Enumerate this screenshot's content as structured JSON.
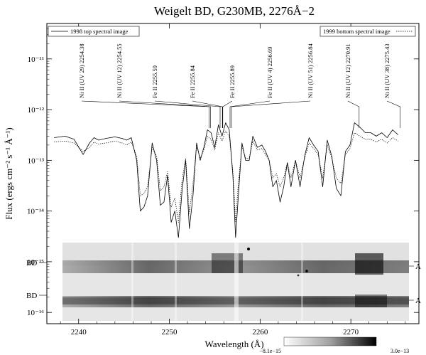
{
  "chart_data": {
    "type": "line",
    "title": "Weigelt BD, G230MB, 2276Å−2",
    "xlabel": "Wavelength (Å)",
    "ylabel": "Flux (ergs cm⁻² s⁻¹ Å⁻¹)",
    "xlim": [
      2236.5,
      2277.5
    ],
    "ylim": [
      6e-17,
      5e-11
    ],
    "yscale": "log",
    "grid": false,
    "x_ticks": [
      2240,
      2250,
      2260,
      2270
    ],
    "x_tick_labels": [
      "2240",
      "2250",
      "2260",
      "2270"
    ],
    "y_ticks": [
      1e-16,
      1e-15,
      1e-14,
      1e-13,
      1e-12,
      1e-11
    ],
    "y_tick_labels": [
      "10⁻¹⁶",
      "10⁻¹⁵",
      "10⁻¹⁴",
      "10⁻¹³",
      "10⁻¹²",
      "10⁻¹¹"
    ],
    "legend": [
      {
        "label": "1998 top spectral image",
        "position": "top-left",
        "style": "solid"
      },
      {
        "label": "1999 bottom spectral image",
        "position": "top-right",
        "style": "dotted"
      }
    ],
    "series": [
      {
        "name": "1998 top spectral image",
        "style": "solid",
        "x": [
          2237.3,
          2238.5,
          2239.5,
          2240.5,
          2241.2,
          2241.7,
          2242.2,
          2243.0,
          2244.0,
          2244.8,
          2245.3,
          2245.8,
          2246.4,
          2246.8,
          2247.2,
          2247.6,
          2248.1,
          2248.6,
          2249.0,
          2249.4,
          2249.8,
          2250.2,
          2250.6,
          2251.0,
          2251.4,
          2251.8,
          2252.2,
          2252.6,
          2253.0,
          2253.4,
          2253.8,
          2254.2,
          2254.6,
          2255.0,
          2255.4,
          2255.8,
          2256.2,
          2256.6,
          2257.0,
          2257.3,
          2257.6,
          2258.0,
          2258.4,
          2258.8,
          2259.2,
          2259.7,
          2260.2,
          2260.6,
          2261.0,
          2261.4,
          2261.8,
          2262.2,
          2262.6,
          2263.0,
          2263.4,
          2263.9,
          2264.4,
          2264.9,
          2265.4,
          2265.9,
          2266.4,
          2266.9,
          2267.4,
          2267.9,
          2268.4,
          2268.9,
          2269.4,
          2269.9,
          2270.4,
          2271.0,
          2271.6,
          2272.2,
          2272.8,
          2273.4,
          2274.0,
          2274.6,
          2275.2
        ],
        "y": [
          2.8e-13,
          3e-13,
          2.6e-13,
          1.3e-13,
          2.2e-13,
          2.8e-13,
          2.5e-13,
          2.7e-13,
          2.9e-13,
          2.7e-13,
          2.5e-13,
          2.8e-13,
          1e-13,
          1e-14,
          1.2e-14,
          2e-14,
          2.2e-13,
          1e-13,
          1.3e-14,
          1.5e-14,
          5e-14,
          6e-15,
          1e-14,
          3e-15,
          2.5e-14,
          1e-13,
          4.5e-15,
          2e-14,
          2.2e-13,
          1e-13,
          1.8e-13,
          4e-13,
          3.5e-13,
          1.8e-13,
          5e-13,
          3e-13,
          5.5e-13,
          4e-13,
          5e-14,
          3e-15,
          2e-14,
          2.2e-13,
          1e-13,
          1e-13,
          3e-13,
          1.8e-13,
          2e-13,
          1.5e-13,
          1e-13,
          3e-14,
          4e-14,
          1.5e-14,
          3e-14,
          9e-14,
          3e-14,
          1e-13,
          3e-14,
          1.2e-13,
          2.8e-13,
          2e-13,
          1.5e-13,
          3e-14,
          2.5e-13,
          1.2e-13,
          2.8e-14,
          2e-14,
          1.5e-13,
          2e-13,
          5.5e-13,
          4.5e-13,
          3.5e-13,
          3.5e-13,
          3e-13,
          3.5e-13,
          2.8e-13,
          4e-13,
          3.2e-13
        ]
      },
      {
        "name": "1999 bottom spectral image",
        "style": "dotted",
        "x": [
          2237.3,
          2238.5,
          2239.5,
          2240.5,
          2241.2,
          2241.7,
          2242.2,
          2243.0,
          2244.0,
          2244.8,
          2245.3,
          2245.8,
          2246.4,
          2246.8,
          2247.2,
          2247.6,
          2248.1,
          2248.6,
          2249.0,
          2249.4,
          2249.8,
          2250.2,
          2250.6,
          2251.0,
          2251.4,
          2251.8,
          2252.2,
          2252.6,
          2253.0,
          2253.4,
          2253.8,
          2254.2,
          2254.6,
          2255.0,
          2255.4,
          2255.8,
          2256.2,
          2256.6,
          2257.0,
          2257.3,
          2257.6,
          2258.0,
          2258.4,
          2258.8,
          2259.2,
          2259.7,
          2260.2,
          2260.6,
          2261.0,
          2261.4,
          2261.8,
          2262.2,
          2262.6,
          2263.0,
          2263.4,
          2263.9,
          2264.4,
          2264.9,
          2265.4,
          2265.9,
          2266.4,
          2266.9,
          2267.4,
          2267.9,
          2268.4,
          2268.9,
          2269.4,
          2269.9,
          2270.4,
          2271.0,
          2271.6,
          2272.2,
          2272.8,
          2273.4,
          2274.0,
          2274.6,
          2275.2
        ],
        "y": [
          2.3e-13,
          2.4e-13,
          2.2e-13,
          1.5e-13,
          1.8e-13,
          2.3e-13,
          2.1e-13,
          2.2e-13,
          2.4e-13,
          2.2e-13,
          2e-13,
          2.3e-13,
          1.2e-13,
          2e-14,
          2.2e-14,
          3e-14,
          1.8e-13,
          1.2e-13,
          2.5e-14,
          3e-14,
          6e-14,
          1.2e-14,
          1.8e-14,
          6e-15,
          4e-14,
          1.1e-13,
          9e-15,
          3.5e-14,
          1.9e-13,
          1.1e-13,
          1.6e-13,
          3e-13,
          2.6e-13,
          1.6e-13,
          3.5e-13,
          2.4e-13,
          3.8e-13,
          3e-13,
          6e-14,
          6e-15,
          3.5e-14,
          1.9e-13,
          1.1e-13,
          1.1e-13,
          2.4e-13,
          1.6e-13,
          1.7e-13,
          1.3e-13,
          1e-13,
          4.5e-14,
          5.5e-14,
          3e-14,
          4.5e-14,
          9e-14,
          4.5e-14,
          1e-13,
          4.5e-14,
          1.1e-13,
          2.2e-13,
          1.7e-13,
          1.3e-13,
          4.5e-14,
          2e-13,
          1.1e-13,
          4.5e-14,
          3.5e-14,
          1.3e-13,
          1.7e-13,
          3.5e-13,
          3e-13,
          2.6e-13,
          2.6e-13,
          2.3e-13,
          2.6e-13,
          2.2e-13,
          2.8e-13,
          2.4e-13
        ]
      }
    ],
    "line_ids": [
      {
        "label": "Ni II (UV 29) 2254.38",
        "x": 2254.38
      },
      {
        "label": "Ni II (UV 12) 2254.55",
        "x": 2254.55
      },
      {
        "label": "Fe II 2255.59",
        "x": 2255.59
      },
      {
        "label": "Fe II 2255.84",
        "x": 2255.84
      },
      {
        "label": "Fe II 2255.89",
        "x": 2255.89
      },
      {
        "label": "Fe II (UV 4) 2256.69",
        "x": 2256.69
      },
      {
        "label": "Ni II (UV 51) 2256.84",
        "x": 2256.84
      },
      {
        "label": "Ni II (UV 12) 2270.91",
        "x": 2270.91
      },
      {
        "label": "Ni II (UV 38) 2275.43",
        "x": 2275.43
      }
    ],
    "spectral_image": {
      "side_labels_left": [
        "BD",
        "BD"
      ],
      "side_labels_right": [
        "A",
        "A"
      ],
      "colorbar_min_label": "−8.1e−15",
      "colorbar_max_label": "3.0e−13",
      "colormap": "gray_r"
    }
  }
}
